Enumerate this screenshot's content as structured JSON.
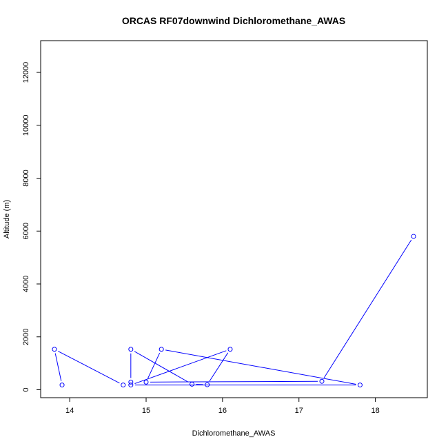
{
  "chart_data": {
    "type": "line",
    "title": "ORCAS RF07downwind Dichloromethane_AWAS",
    "xlabel": "Dichloromethane_AWAS",
    "ylabel": "Altitude (m)",
    "xlim": [
      13.62,
      18.68
    ],
    "ylim": [
      -300,
      13200
    ],
    "x_ticks": [
      14,
      15,
      16,
      17,
      18
    ],
    "y_ticks": [
      0,
      2000,
      4000,
      6000,
      8000,
      10000,
      12000
    ],
    "grid": false,
    "series_color": "#0000ff",
    "points": [
      {
        "x": 18.5,
        "y": 5800
      },
      {
        "x": 17.3,
        "y": 320
      },
      {
        "x": 15.0,
        "y": 290
      },
      {
        "x": 15.2,
        "y": 1530
      },
      {
        "x": 17.8,
        "y": 180
      },
      {
        "x": 14.8,
        "y": 180
      },
      {
        "x": 16.1,
        "y": 1530
      },
      {
        "x": 15.8,
        "y": 190
      },
      {
        "x": 15.6,
        "y": 210
      },
      {
        "x": 14.8,
        "y": 1530
      },
      {
        "x": 14.8,
        "y": 290
      },
      {
        "x": 14.7,
        "y": 180
      },
      {
        "x": 13.8,
        "y": 1530
      },
      {
        "x": 13.9,
        "y": 180
      }
    ]
  }
}
